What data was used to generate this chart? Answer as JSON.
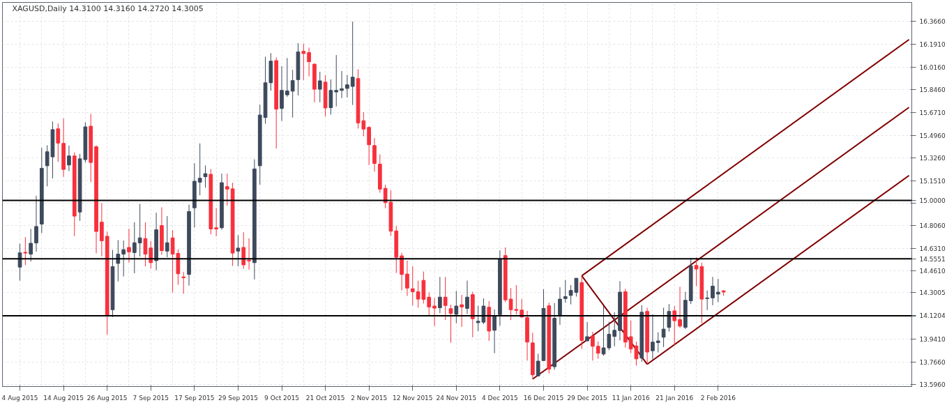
{
  "chart_data": {
    "type": "candlestick",
    "title": "XAGUSD,Daily 14.3100 14.3160 14.2720 14.3005",
    "categories": [
      "4 Aug 2015",
      null,
      null,
      null,
      null,
      null,
      null,
      null,
      "14 Aug 2015",
      null,
      null,
      null,
      null,
      null,
      null,
      null,
      "26 Aug 2015",
      null,
      null,
      null,
      null,
      null,
      null,
      null,
      "7 Sep 2015",
      null,
      null,
      null,
      null,
      null,
      null,
      null,
      "17 Sep 2015",
      null,
      null,
      null,
      null,
      null,
      null,
      null,
      "29 Sep 2015",
      null,
      null,
      null,
      null,
      null,
      null,
      null,
      "9 Oct 2015",
      null,
      null,
      null,
      null,
      null,
      null,
      null,
      "21 Oct 2015",
      null,
      null,
      null,
      null,
      null,
      null,
      null,
      "2 Nov 2015",
      null,
      null,
      null,
      null,
      null,
      null,
      null,
      "12 Nov 2015",
      null,
      null,
      null,
      null,
      null,
      null,
      null,
      "24 Nov 2015",
      null,
      null,
      null,
      null,
      null,
      null,
      null,
      "4 Dec 2015",
      null,
      null,
      null,
      null,
      null,
      null,
      null,
      "16 Dec 2015",
      null,
      null,
      null,
      null,
      null,
      null,
      null,
      "29 Dec 2015",
      null,
      null,
      null,
      null,
      null,
      null,
      null,
      "11 Jan 2016",
      null,
      null,
      null,
      null,
      null,
      null,
      null,
      "21 Jan 2016",
      null,
      null,
      null,
      null,
      null,
      null,
      null,
      "2 Feb 2016",
      null,
      null,
      null,
      null,
      null,
      null,
      null,
      null,
      null,
      null,
      null,
      null,
      null,
      null,
      null,
      null,
      null,
      null,
      null,
      null,
      null,
      null,
      null,
      null,
      null,
      null,
      null,
      null,
      null,
      null,
      null,
      null,
      null,
      null,
      null
    ],
    "ohlc": [
      [
        14.491,
        14.669,
        14.388,
        14.6
      ],
      [
        14.604,
        14.72,
        14.506,
        14.598
      ],
      [
        14.59,
        14.782,
        14.534,
        14.673
      ],
      [
        14.675,
        15.035,
        14.609,
        14.801
      ],
      [
        14.819,
        15.401,
        14.75,
        15.245
      ],
      [
        15.264,
        15.42,
        15.107,
        15.371
      ],
      [
        15.332,
        15.602,
        15.167,
        15.54
      ],
      [
        15.546,
        15.587,
        15.294,
        15.437
      ],
      [
        15.435,
        15.625,
        15.18,
        15.236
      ],
      [
        15.27,
        15.418,
        15.223,
        15.339
      ],
      [
        15.339,
        15.366,
        14.727,
        14.88
      ],
      [
        14.911,
        15.354,
        14.844,
        15.317
      ],
      [
        15.311,
        15.595,
        15.289,
        15.561
      ],
      [
        15.566,
        15.66,
        15.139,
        15.289
      ],
      [
        15.409,
        15.42,
        14.596,
        14.763
      ],
      [
        14.834,
        14.979,
        14.572,
        14.692
      ],
      [
        14.726,
        14.761,
        13.975,
        14.119
      ],
      [
        14.166,
        14.622,
        14.11,
        14.495
      ],
      [
        14.519,
        14.697,
        14.382,
        14.59
      ],
      [
        14.59,
        14.694,
        14.42,
        14.624
      ],
      [
        14.641,
        14.784,
        14.525,
        14.607
      ],
      [
        14.602,
        14.834,
        14.444,
        14.677
      ],
      [
        14.675,
        14.973,
        14.572,
        14.714
      ],
      [
        14.709,
        14.833,
        14.497,
        14.59
      ],
      [
        14.637,
        14.69,
        14.48,
        14.525
      ],
      [
        14.54,
        14.906,
        14.467,
        14.776
      ],
      [
        14.808,
        14.947,
        14.585,
        14.617
      ],
      [
        14.613,
        14.88,
        14.566,
        14.677
      ],
      [
        14.714,
        14.773,
        14.298,
        14.59
      ],
      [
        14.596,
        14.626,
        14.356,
        14.44
      ],
      [
        14.416,
        14.453,
        14.288,
        14.41
      ],
      [
        14.435,
        14.968,
        14.35,
        14.915
      ],
      [
        14.943,
        15.283,
        14.793,
        15.146
      ],
      [
        15.139,
        15.435,
        15.039,
        15.169
      ],
      [
        15.18,
        15.266,
        15.097,
        15.204
      ],
      [
        15.199,
        15.24,
        14.741,
        14.782
      ],
      [
        14.791,
        14.941,
        14.726,
        14.782
      ],
      [
        14.791,
        15.204,
        14.776,
        15.135
      ],
      [
        15.105,
        15.204,
        14.96,
        15.086
      ],
      [
        15.088,
        15.135,
        14.5,
        14.598
      ],
      [
        14.613,
        14.735,
        14.497,
        14.636
      ],
      [
        14.641,
        14.757,
        14.478,
        14.508
      ],
      [
        14.544,
        14.711,
        14.472,
        14.538
      ],
      [
        14.525,
        15.313,
        14.397,
        15.24
      ],
      [
        15.264,
        15.73,
        15.12,
        15.651
      ],
      [
        15.632,
        16.096,
        15.585,
        15.897
      ],
      [
        15.897,
        16.124,
        15.837,
        16.062
      ],
      [
        16.066,
        16.09,
        15.396,
        15.696
      ],
      [
        15.702,
        16.024,
        15.606,
        15.839
      ],
      [
        15.805,
        16.086,
        15.79,
        15.835
      ],
      [
        15.833,
        15.996,
        15.632,
        15.914
      ],
      [
        15.921,
        16.199,
        15.801,
        16.133
      ],
      [
        16.137,
        16.195,
        15.917,
        16.12
      ],
      [
        16.128,
        16.165,
        15.946,
        16.058
      ],
      [
        16.039,
        16.045,
        15.748,
        15.848
      ],
      [
        15.848,
        15.981,
        15.748,
        15.912
      ],
      [
        15.902,
        15.955,
        15.64,
        15.705
      ],
      [
        15.707,
        15.923,
        15.655,
        15.839
      ],
      [
        15.827,
        16.109,
        15.717,
        15.839
      ],
      [
        15.839,
        15.987,
        15.78,
        15.852
      ],
      [
        15.854,
        15.957,
        15.786,
        15.882
      ],
      [
        15.869,
        16.364,
        15.728,
        15.94
      ],
      [
        15.929,
        16.0,
        15.548,
        15.591
      ],
      [
        15.608,
        15.673,
        15.489,
        15.544
      ],
      [
        15.557,
        15.565,
        15.27,
        15.424
      ],
      [
        15.418,
        15.476,
        15.219,
        15.281
      ],
      [
        15.277,
        15.351,
        15.058,
        15.086
      ],
      [
        15.092,
        15.12,
        14.94,
        14.983
      ],
      [
        14.986,
        15.077,
        14.729,
        14.765
      ],
      [
        14.767,
        14.804,
        14.446,
        14.566
      ],
      [
        14.577,
        14.6,
        14.313,
        14.435
      ],
      [
        14.438,
        14.54,
        14.271,
        14.331
      ],
      [
        14.326,
        14.498,
        14.198,
        14.303
      ],
      [
        14.303,
        14.388,
        14.181,
        14.247
      ],
      [
        14.39,
        14.457,
        14.213,
        14.245
      ],
      [
        14.262,
        14.298,
        14.121,
        14.187
      ],
      [
        14.194,
        14.256,
        14.041,
        14.178
      ],
      [
        14.181,
        14.416,
        14.14,
        14.262
      ],
      [
        14.262,
        14.416,
        14.087,
        14.198
      ],
      [
        14.174,
        14.204,
        13.915,
        14.138
      ],
      [
        14.131,
        14.309,
        14.063,
        14.194
      ],
      [
        14.204,
        14.279,
        14.035,
        14.187
      ],
      [
        14.176,
        14.388,
        14.134,
        14.262
      ],
      [
        14.281,
        14.303,
        13.956,
        14.097
      ],
      [
        14.067,
        14.196,
        14.003,
        14.078
      ],
      [
        14.071,
        14.253,
        14.056,
        14.194
      ],
      [
        14.185,
        14.232,
        13.928,
        14.003
      ],
      [
        14.009,
        14.168,
        13.834,
        14.116
      ],
      [
        14.129,
        14.619,
        14.044,
        14.551
      ],
      [
        14.579,
        14.641,
        14.224,
        14.241
      ],
      [
        14.247,
        14.331,
        14.087,
        14.166
      ],
      [
        14.168,
        14.354,
        14.131,
        14.161
      ],
      [
        14.163,
        14.247,
        14.106,
        14.11
      ],
      [
        14.106,
        14.157,
        13.778,
        13.919
      ],
      [
        13.913,
        13.99,
        13.637,
        13.669
      ],
      [
        13.661,
        13.83,
        13.656,
        13.774
      ],
      [
        13.778,
        14.322,
        13.774,
        14.176
      ],
      [
        14.196,
        14.219,
        13.68,
        13.712
      ],
      [
        13.731,
        14.217,
        13.708,
        14.101
      ],
      [
        14.119,
        14.337,
        14.05,
        14.247
      ],
      [
        14.251,
        14.393,
        14.219,
        14.266
      ],
      [
        14.275,
        14.354,
        14.206,
        14.313
      ],
      [
        14.298,
        14.406,
        14.266,
        14.406
      ],
      [
        14.373,
        14.425,
        13.866,
        13.932
      ],
      [
        13.928,
        14.072,
        13.928,
        13.96
      ],
      [
        13.965,
        13.997,
        13.778,
        13.887
      ],
      [
        13.887,
        13.924,
        13.791,
        13.834
      ],
      [
        13.828,
        14.194,
        13.815,
        13.875
      ],
      [
        13.875,
        14.074,
        13.857,
        13.979
      ],
      [
        13.962,
        14.147,
        13.887,
        14.009
      ],
      [
        14.007,
        14.384,
        13.932,
        14.3
      ],
      [
        14.303,
        14.326,
        13.877,
        13.919
      ],
      [
        13.96,
        14.084,
        13.834,
        13.866
      ],
      [
        13.89,
        13.922,
        13.74,
        13.791
      ],
      [
        13.797,
        14.2,
        13.768,
        14.147
      ],
      [
        14.153,
        14.181,
        13.75,
        13.843
      ],
      [
        13.853,
        14.131,
        13.787,
        13.919
      ],
      [
        13.915,
        13.994,
        13.84,
        13.928
      ],
      [
        13.956,
        14.181,
        13.881,
        14.018
      ],
      [
        14.031,
        14.209,
        13.999,
        14.153
      ],
      [
        14.157,
        14.194,
        13.894,
        14.082
      ],
      [
        14.091,
        14.341,
        14.027,
        14.041
      ],
      [
        14.031,
        14.303,
        14.018,
        14.238
      ],
      [
        14.234,
        14.56,
        14.209,
        14.5
      ],
      [
        14.504,
        14.566,
        14.345,
        14.476
      ],
      [
        14.495,
        14.525,
        14.063,
        14.247
      ],
      [
        14.251,
        14.313,
        14.163,
        14.256
      ],
      [
        14.256,
        14.416,
        14.2,
        14.346
      ],
      [
        14.285,
        14.401,
        14.224,
        14.3
      ],
      [
        14.31,
        14.316,
        14.272,
        14.3005
      ],
      null,
      null,
      null,
      null,
      null,
      null,
      null,
      null,
      null,
      null,
      null,
      null,
      null,
      null,
      null,
      null,
      null,
      null,
      null,
      null,
      null,
      null,
      null,
      null,
      null,
      null,
      null,
      null,
      null,
      null,
      null,
      null,
      null,
      null
    ],
    "colors": [
      "#3d4a5c",
      "#f7303c",
      "#3d4a5c",
      "#3d4a5c",
      "#3d4a5c",
      "#3d4a5c",
      "#3d4a5c",
      "#f7303c",
      "#f7303c",
      "#3d4a5c",
      "#f7303c",
      "#3d4a5c",
      "#3d4a5c",
      "#f7303c",
      "#f7303c",
      "#f7303c",
      "#f7303c",
      "#3d4a5c",
      "#3d4a5c",
      "#3d4a5c",
      "#f7303c",
      "#3d4a5c",
      "#3d4a5c",
      "#f7303c",
      "#f7303c",
      "#3d4a5c",
      "#f7303c",
      "#3d4a5c",
      "#f7303c",
      "#f7303c",
      "#f7303c",
      "#3d4a5c",
      "#3d4a5c",
      "#3d4a5c",
      "#3d4a5c",
      "#f7303c",
      "#f7303c",
      "#3d4a5c",
      "#f7303c",
      "#f7303c",
      "#3d4a5c",
      "#f7303c",
      "#f7303c",
      "#3d4a5c",
      "#3d4a5c",
      "#3d4a5c",
      "#3d4a5c",
      "#f7303c",
      "#3d4a5c",
      "#3d4a5c",
      "#3d4a5c",
      "#3d4a5c",
      "#f7303c",
      "#f7303c",
      "#f7303c",
      "#3d4a5c",
      "#f7303c",
      "#3d4a5c",
      "#3d4a5c",
      "#3d4a5c",
      "#3d4a5c",
      "#3d4a5c",
      "#f7303c",
      "#f7303c",
      "#f7303c",
      "#f7303c",
      "#f7303c",
      "#f7303c",
      "#f7303c",
      "#f7303c",
      "#f7303c",
      "#f7303c",
      "#f7303c",
      "#f7303c",
      "#f7303c",
      "#f7303c",
      "#f7303c",
      "#3d4a5c",
      "#f7303c",
      "#f7303c",
      "#3d4a5c",
      "#f7303c",
      "#3d4a5c",
      "#f7303c",
      "#3d4a5c",
      "#3d4a5c",
      "#f7303c",
      "#3d4a5c",
      "#3d4a5c",
      "#f7303c",
      "#f7303c",
      "#f7303c",
      "#f7303c",
      "#f7303c",
      "#f7303c",
      "#3d4a5c",
      "#3d4a5c",
      "#f7303c",
      "#3d4a5c",
      "#3d4a5c",
      "#3d4a5c",
      "#3d4a5c",
      "#3d4a5c",
      "#f7303c",
      "#3d4a5c",
      "#f7303c",
      "#f7303c",
      "#3d4a5c",
      "#3d4a5c",
      "#3d4a5c",
      "#3d4a5c",
      "#f7303c",
      "#f7303c",
      "#f7303c",
      "#3d4a5c",
      "#f7303c",
      "#3d4a5c",
      "#3d4a5c",
      "#3d4a5c",
      "#3d4a5c",
      "#f7303c",
      "#f7303c",
      "#3d4a5c",
      "#3d4a5c",
      "#f7303c",
      "#f7303c",
      "#3d4a5c",
      "#3d4a5c",
      "#3d4a5c",
      "#f7303c",
      null,
      null,
      null,
      null,
      null,
      null,
      null,
      null,
      null,
      null,
      null,
      null,
      null,
      null,
      null,
      null,
      null,
      null,
      null,
      null,
      null,
      null,
      null,
      null,
      null,
      null,
      null,
      null,
      null,
      null,
      null,
      null,
      null,
      null
    ],
    "series": [
      {
        "type": "line",
        "color": "#800000",
        "values": [
          null,
          null,
          null,
          null,
          null,
          null,
          null,
          null,
          null,
          null,
          null,
          null,
          null,
          null,
          null,
          null,
          null,
          null,
          null,
          null,
          null,
          null,
          null,
          null,
          null,
          null,
          null,
          null,
          null,
          null,
          null,
          null,
          null,
          null,
          null,
          null,
          null,
          null,
          null,
          null,
          null,
          null,
          null,
          null,
          null,
          null,
          null,
          null,
          null,
          null,
          null,
          null,
          null,
          null,
          null,
          null,
          null,
          null,
          null,
          null,
          null,
          null,
          null,
          null,
          null,
          null,
          null,
          null,
          null,
          null,
          null,
          null,
          null,
          null,
          null,
          null,
          null,
          null,
          null,
          null,
          null,
          null,
          null,
          null,
          null,
          null,
          null,
          null,
          null,
          null,
          null,
          null,
          null,
          null,
          13.637,
          null,
          null,
          null,
          null,
          null,
          null,
          null,
          null,
          null,
          null,
          null,
          null,
          null,
          null,
          null,
          null,
          null,
          null,
          null,
          null,
          null,
          null,
          null,
          null,
          null,
          null,
          null,
          null,
          null,
          null,
          null,
          null,
          null,
          null,
          null,
          null,
          null,
          null,
          null,
          null,
          null,
          null,
          null,
          null,
          null,
          null,
          null,
          null,
          null,
          null,
          null,
          null,
          null,
          null,
          null,
          null,
          null,
          null,
          null,
          null,
          null,
          null,
          null,
          null,
          null,
          null,
          null,
          null,
          15.71
        ]
      },
      {
        "type": "line",
        "color": "#800000",
        "values": [
          null,
          null,
          null,
          null,
          null,
          null,
          null,
          null,
          null,
          null,
          null,
          null,
          null,
          null,
          null,
          null,
          null,
          null,
          null,
          null,
          null,
          null,
          null,
          null,
          null,
          null,
          null,
          null,
          null,
          null,
          null,
          null,
          null,
          null,
          null,
          null,
          null,
          null,
          null,
          null,
          null,
          null,
          null,
          null,
          null,
          null,
          null,
          null,
          null,
          null,
          null,
          null,
          null,
          null,
          null,
          null,
          null,
          null,
          null,
          null,
          null,
          null,
          null,
          null,
          null,
          null,
          null,
          null,
          null,
          null,
          null,
          null,
          null,
          null,
          null,
          null,
          null,
          null,
          null,
          null,
          null,
          null,
          null,
          null,
          null,
          null,
          null,
          null,
          null,
          null,
          null,
          null,
          null,
          null,
          null,
          null,
          null,
          null,
          null,
          null,
          null,
          null,
          null,
          14.425,
          null,
          null,
          null,
          null,
          null,
          null,
          null,
          null,
          null,
          null,
          null,
          null,
          null,
          null,
          null,
          null,
          null,
          null,
          null,
          null,
          null,
          null,
          null,
          null,
          null,
          null,
          null,
          null,
          null,
          null,
          null,
          null,
          null,
          null,
          null,
          null,
          null,
          null,
          null,
          null,
          null,
          null,
          null,
          null,
          null,
          null,
          null,
          null,
          null,
          null,
          null,
          null,
          null,
          null,
          null,
          null,
          null,
          null,
          null,
          16.227
        ]
      },
      {
        "type": "line",
        "color": "#800000",
        "values": [
          null,
          null,
          null,
          null,
          null,
          null,
          null,
          null,
          null,
          null,
          null,
          null,
          null,
          null,
          null,
          null,
          null,
          null,
          null,
          null,
          null,
          null,
          null,
          null,
          null,
          null,
          null,
          null,
          null,
          null,
          null,
          null,
          null,
          null,
          null,
          null,
          null,
          null,
          null,
          null,
          null,
          null,
          null,
          null,
          null,
          null,
          null,
          null,
          null,
          null,
          null,
          null,
          null,
          null,
          null,
          null,
          null,
          null,
          null,
          null,
          null,
          null,
          null,
          null,
          null,
          null,
          null,
          null,
          null,
          null,
          null,
          null,
          null,
          null,
          null,
          null,
          null,
          null,
          null,
          null,
          null,
          null,
          null,
          null,
          null,
          null,
          null,
          null,
          null,
          null,
          null,
          null,
          null,
          null,
          null,
          null,
          null,
          null,
          null,
          null,
          null,
          null,
          null,
          null,
          null,
          null,
          null,
          null,
          null,
          null,
          null,
          null,
          null,
          null,
          null,
          13.75,
          null,
          null,
          null,
          null,
          null,
          null,
          null,
          null,
          null,
          null,
          null,
          null,
          null,
          null,
          null,
          null,
          null,
          null,
          null,
          null,
          null,
          null,
          null,
          null,
          null,
          null,
          null,
          null,
          null,
          null,
          null,
          null,
          null,
          null,
          null,
          null,
          null,
          null,
          null,
          null,
          null,
          null,
          null,
          null,
          null,
          null,
          null,
          15.19
        ]
      },
      {
        "type": "line",
        "color": "#800000",
        "values": [
          null,
          null,
          null,
          null,
          null,
          null,
          null,
          null,
          null,
          null,
          null,
          null,
          null,
          null,
          null,
          null,
          null,
          null,
          null,
          null,
          null,
          null,
          null,
          null,
          null,
          null,
          null,
          null,
          null,
          null,
          null,
          null,
          null,
          null,
          null,
          null,
          null,
          null,
          null,
          null,
          null,
          null,
          null,
          null,
          null,
          null,
          null,
          null,
          null,
          null,
          null,
          null,
          null,
          null,
          null,
          null,
          null,
          null,
          null,
          null,
          null,
          null,
          null,
          null,
          null,
          null,
          null,
          null,
          null,
          null,
          null,
          null,
          null,
          null,
          null,
          null,
          null,
          null,
          null,
          null,
          null,
          null,
          null,
          null,
          null,
          null,
          null,
          null,
          null,
          null,
          null,
          null,
          null,
          null,
          null,
          null,
          null,
          null,
          null,
          null,
          null,
          null,
          null,
          14.425,
          null,
          null,
          null,
          null,
          null,
          null,
          null,
          null,
          null,
          null,
          null,
          13.75,
          null,
          null,
          null,
          null,
          null,
          null,
          null,
          null,
          null,
          null,
          null,
          null,
          null,
          null,
          null,
          null,
          null,
          null,
          null,
          null,
          null,
          null,
          null,
          null,
          null,
          null,
          null,
          null,
          null,
          null,
          null,
          null,
          null,
          null,
          null,
          null,
          null,
          null,
          null,
          null,
          null,
          null,
          null,
          null,
          null,
          null,
          null,
          null
        ]
      }
    ],
    "ylim": [
      13.58,
      16.51
    ],
    "yticks": [
      {
        "value": 16.366,
        "label": "16.3660"
      },
      {
        "value": 16.191,
        "label": "16.1910"
      },
      {
        "value": 16.016,
        "label": "16.0160"
      },
      {
        "value": 15.846,
        "label": "15.8460"
      },
      {
        "value": 15.671,
        "label": "15.6710"
      },
      {
        "value": 15.496,
        "label": "15.4960"
      },
      {
        "value": 15.326,
        "label": "15.3260"
      },
      {
        "value": 15.151,
        "label": "15.1510"
      },
      {
        "value": 14.981,
        "label": null
      },
      {
        "value": 14.806,
        "label": "14.8060"
      },
      {
        "value": 14.631,
        "label": "14.6310"
      },
      {
        "value": 14.461,
        "label": "14.4610"
      },
      {
        "value": 14.3005,
        "label": "14.3005"
      },
      {
        "value": 14.116,
        "label": null
      },
      {
        "value": 13.941,
        "label": "13.9410"
      },
      {
        "value": 13.766,
        "label": "13.7660"
      },
      {
        "value": 13.596,
        "label": "13.5960"
      }
    ],
    "ref_lines": [
      {
        "axis": "y",
        "value": 15.0,
        "label": "15.0000",
        "color": "#000000"
      },
      {
        "axis": "y",
        "value": 14.5551,
        "label": "14.5551",
        "color": "#000000"
      },
      {
        "axis": "y",
        "value": 14.1204,
        "label": "14.1204",
        "color": "#000000"
      }
    ],
    "grid": true
  }
}
